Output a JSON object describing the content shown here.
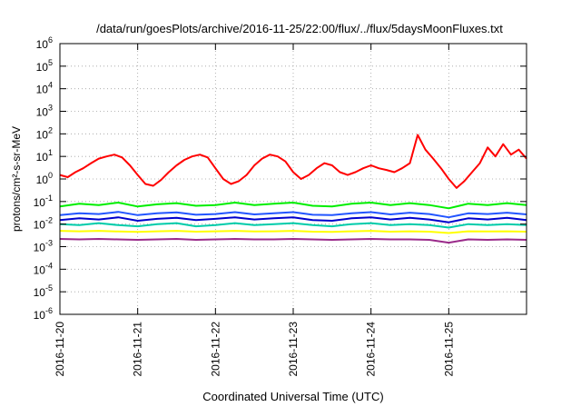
{
  "chart_data": {
    "type": "line",
    "title": "/data/run/goesPlots/archive/2016-11-25/22:00/flux/../flux/5daysMoonFluxes.txt",
    "xlabel": "Coordinated Universal Time (UTC)",
    "ylabel": "protons/cm²-s-sr-MeV",
    "yscale": "log",
    "ylim_exponents": [
      -6,
      6
    ],
    "ytick_exponents": [
      -6,
      -5,
      -4,
      -3,
      -2,
      -1,
      0,
      1,
      2,
      3,
      4,
      5,
      6
    ],
    "ytick_base": "10",
    "xlim_days": [
      0,
      6
    ],
    "xtick_labels": [
      "2016-11-20",
      "2016-11-21",
      "2016-11-22",
      "2016-11-23",
      "2016-11-24",
      "2016-11-25"
    ],
    "grid": true,
    "legend": "none",
    "series": [
      {
        "color": "#9a2a8a",
        "x": [
          0,
          0.25,
          0.5,
          0.75,
          1,
          1.25,
          1.5,
          1.75,
          2,
          2.25,
          2.5,
          2.75,
          3,
          3.25,
          3.5,
          3.75,
          4,
          4.25,
          4.5,
          4.75,
          5,
          5.25,
          5.5,
          5.75,
          6
        ],
        "y": [
          0.0022,
          0.0021,
          0.0022,
          0.0021,
          0.002,
          0.0021,
          0.0022,
          0.002,
          0.0021,
          0.0022,
          0.0021,
          0.0021,
          0.0022,
          0.0021,
          0.002,
          0.0021,
          0.0022,
          0.0021,
          0.0021,
          0.002,
          0.0015,
          0.0021,
          0.002,
          0.0021,
          0.002
        ]
      },
      {
        "color": "#ffff00",
        "x": [
          0,
          0.25,
          0.5,
          0.75,
          1,
          1.25,
          1.5,
          1.75,
          2,
          2.25,
          2.5,
          2.75,
          3,
          3.25,
          3.5,
          3.75,
          4,
          4.25,
          4.5,
          4.75,
          5,
          5.25,
          5.5,
          5.75,
          6
        ],
        "y": [
          0.005,
          0.0048,
          0.005,
          0.0047,
          0.0045,
          0.0048,
          0.005,
          0.0046,
          0.0048,
          0.005,
          0.0047,
          0.0048,
          0.005,
          0.0046,
          0.0045,
          0.0048,
          0.005,
          0.0046,
          0.0048,
          0.0046,
          0.004,
          0.0048,
          0.0047,
          0.0048,
          0.0046
        ]
      },
      {
        "color": "#00ccaa",
        "x": [
          0,
          0.25,
          0.5,
          0.75,
          1,
          1.25,
          1.5,
          1.75,
          2,
          2.25,
          2.5,
          2.75,
          3,
          3.25,
          3.5,
          3.75,
          4,
          4.25,
          4.5,
          4.75,
          5,
          5.25,
          5.5,
          5.75,
          6
        ],
        "y": [
          0.01,
          0.009,
          0.011,
          0.009,
          0.008,
          0.01,
          0.011,
          0.008,
          0.009,
          0.011,
          0.009,
          0.01,
          0.011,
          0.009,
          0.008,
          0.01,
          0.011,
          0.009,
          0.01,
          0.009,
          0.007,
          0.01,
          0.009,
          0.01,
          0.009
        ]
      },
      {
        "color": "#0000cc",
        "x": [
          0,
          0.25,
          0.5,
          0.75,
          1,
          1.25,
          1.5,
          1.75,
          2,
          2.25,
          2.5,
          2.75,
          3,
          3.25,
          3.5,
          3.75,
          4,
          4.25,
          4.5,
          4.75,
          5,
          5.25,
          5.5,
          5.75,
          6
        ],
        "y": [
          0.015,
          0.018,
          0.016,
          0.02,
          0.014,
          0.017,
          0.019,
          0.015,
          0.017,
          0.02,
          0.016,
          0.018,
          0.02,
          0.015,
          0.014,
          0.018,
          0.02,
          0.016,
          0.019,
          0.016,
          0.012,
          0.018,
          0.016,
          0.019,
          0.015
        ]
      },
      {
        "color": "#2255ff",
        "x": [
          0,
          0.25,
          0.5,
          0.75,
          1,
          1.25,
          1.5,
          1.75,
          2,
          2.25,
          2.5,
          2.75,
          3,
          3.25,
          3.5,
          3.75,
          4,
          4.25,
          4.5,
          4.75,
          5,
          5.25,
          5.5,
          5.75,
          6
        ],
        "y": [
          0.025,
          0.03,
          0.028,
          0.035,
          0.025,
          0.03,
          0.033,
          0.026,
          0.028,
          0.034,
          0.027,
          0.03,
          0.034,
          0.026,
          0.025,
          0.03,
          0.034,
          0.027,
          0.032,
          0.028,
          0.02,
          0.03,
          0.028,
          0.032,
          0.027
        ]
      },
      {
        "color": "#00ee00",
        "x": [
          0,
          0.25,
          0.5,
          0.75,
          1,
          1.25,
          1.5,
          1.75,
          2,
          2.25,
          2.5,
          2.75,
          3,
          3.25,
          3.5,
          3.75,
          4,
          4.25,
          4.5,
          4.75,
          5,
          5.25,
          5.5,
          5.75,
          6
        ],
        "y": [
          0.06,
          0.08,
          0.07,
          0.09,
          0.06,
          0.075,
          0.085,
          0.065,
          0.07,
          0.09,
          0.07,
          0.08,
          0.09,
          0.065,
          0.06,
          0.08,
          0.09,
          0.07,
          0.085,
          0.07,
          0.05,
          0.08,
          0.07,
          0.085,
          0.07
        ]
      },
      {
        "color": "#ff0000",
        "x": [
          0,
          0.1,
          0.2,
          0.3,
          0.4,
          0.5,
          0.6,
          0.7,
          0.8,
          0.9,
          1.0,
          1.1,
          1.2,
          1.3,
          1.4,
          1.5,
          1.6,
          1.7,
          1.8,
          1.9,
          2.0,
          2.1,
          2.2,
          2.3,
          2.4,
          2.5,
          2.6,
          2.7,
          2.8,
          2.9,
          3.0,
          3.1,
          3.2,
          3.3,
          3.4,
          3.5,
          3.6,
          3.7,
          3.8,
          3.9,
          4.0,
          4.1,
          4.2,
          4.3,
          4.4,
          4.5,
          4.6,
          4.7,
          4.8,
          4.9,
          5.0,
          5.1,
          5.2,
          5.3,
          5.4,
          5.5,
          5.6,
          5.7,
          5.8,
          5.9,
          6.0
        ],
        "y": [
          1.5,
          1.2,
          2,
          3,
          5,
          8,
          10,
          12,
          9,
          4,
          1.5,
          0.6,
          0.5,
          0.9,
          2,
          4,
          7,
          10,
          12,
          9,
          3,
          1,
          0.6,
          0.8,
          1.5,
          4,
          8,
          12,
          10,
          6,
          2,
          1,
          1.5,
          3,
          5,
          4,
          2,
          1.5,
          2,
          3,
          4,
          3,
          2.5,
          2,
          3,
          5,
          90,
          20,
          8,
          3,
          1,
          0.4,
          0.8,
          2,
          5,
          25,
          10,
          35,
          12,
          20,
          8
        ]
      }
    ]
  }
}
